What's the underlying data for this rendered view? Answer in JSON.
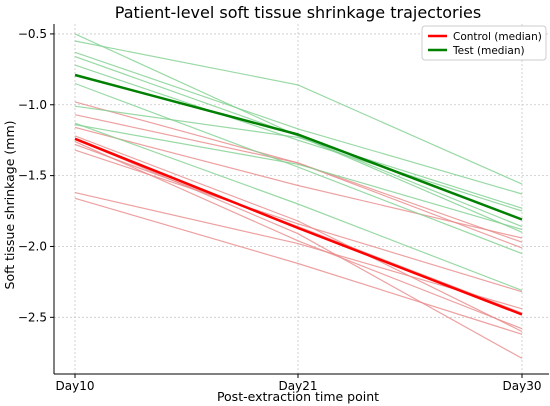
{
  "chart_data": {
    "type": "line",
    "title": "Patient-level soft tissue shrinkage trajectories",
    "xlabel": "Post-extraction time point",
    "ylabel": "Soft tissue shrinkage (mm)",
    "categories": [
      "Day10",
      "Day21",
      "Day30"
    ],
    "ylim": [
      -2.9,
      -0.43
    ],
    "yticks": [
      -0.5,
      -1.0,
      -1.5,
      -2.0,
      -2.5
    ],
    "ytick_labels": [
      "−0.5",
      "−1.0",
      "−1.5",
      "−2.0",
      "−2.5"
    ],
    "grid": true,
    "legend_position": "top-right",
    "colors": {
      "control": "#ff0000",
      "test": "#008000",
      "control_patient": "#e88a8a",
      "test_patient": "#7fcf8f"
    },
    "series": [
      {
        "name": "Control (median)",
        "group": "control",
        "kind": "median",
        "values": [
          -1.24,
          -1.87,
          -2.48
        ]
      },
      {
        "name": "Test (median)",
        "group": "test",
        "kind": "median",
        "values": [
          -0.79,
          -1.21,
          -1.81
        ]
      }
    ],
    "patients": [
      {
        "group": "control",
        "values": [
          -0.98,
          -1.41,
          -2.01
        ]
      },
      {
        "group": "control",
        "values": [
          -1.07,
          -1.41,
          -1.97
        ]
      },
      {
        "group": "control",
        "values": [
          -1.16,
          -1.57,
          -1.94
        ]
      },
      {
        "group": "control",
        "values": [
          -1.24,
          -1.91,
          -2.79
        ]
      },
      {
        "group": "control",
        "values": [
          -1.28,
          -1.86,
          -2.47
        ]
      },
      {
        "group": "control",
        "values": [
          -1.32,
          -1.84,
          -2.32
        ]
      },
      {
        "group": "control",
        "values": [
          -1.22,
          -1.82,
          -2.6
        ]
      },
      {
        "group": "control",
        "values": [
          -1.26,
          -1.96,
          -2.58
        ]
      },
      {
        "group": "control",
        "values": [
          -1.62,
          -1.98,
          -2.44
        ]
      },
      {
        "group": "control",
        "values": [
          -1.66,
          -2.12,
          -2.62
        ]
      },
      {
        "group": "test",
        "values": [
          -0.5,
          -1.22,
          -1.9
        ]
      },
      {
        "group": "test",
        "values": [
          -0.55,
          -0.86,
          -1.56
        ]
      },
      {
        "group": "test",
        "values": [
          -0.63,
          -1.17,
          -1.63
        ]
      },
      {
        "group": "test",
        "values": [
          -0.66,
          -1.22,
          -1.86
        ]
      },
      {
        "group": "test",
        "values": [
          -0.72,
          -1.25,
          -1.75
        ]
      },
      {
        "group": "test",
        "values": [
          -0.85,
          -1.44,
          -2.05
        ]
      },
      {
        "group": "test",
        "values": [
          -1.01,
          -1.23,
          -1.73
        ]
      },
      {
        "group": "test",
        "values": [
          -1.14,
          -1.42,
          -1.88
        ]
      },
      {
        "group": "test",
        "values": [
          -1.13,
          -1.7,
          -2.31
        ]
      }
    ]
  }
}
